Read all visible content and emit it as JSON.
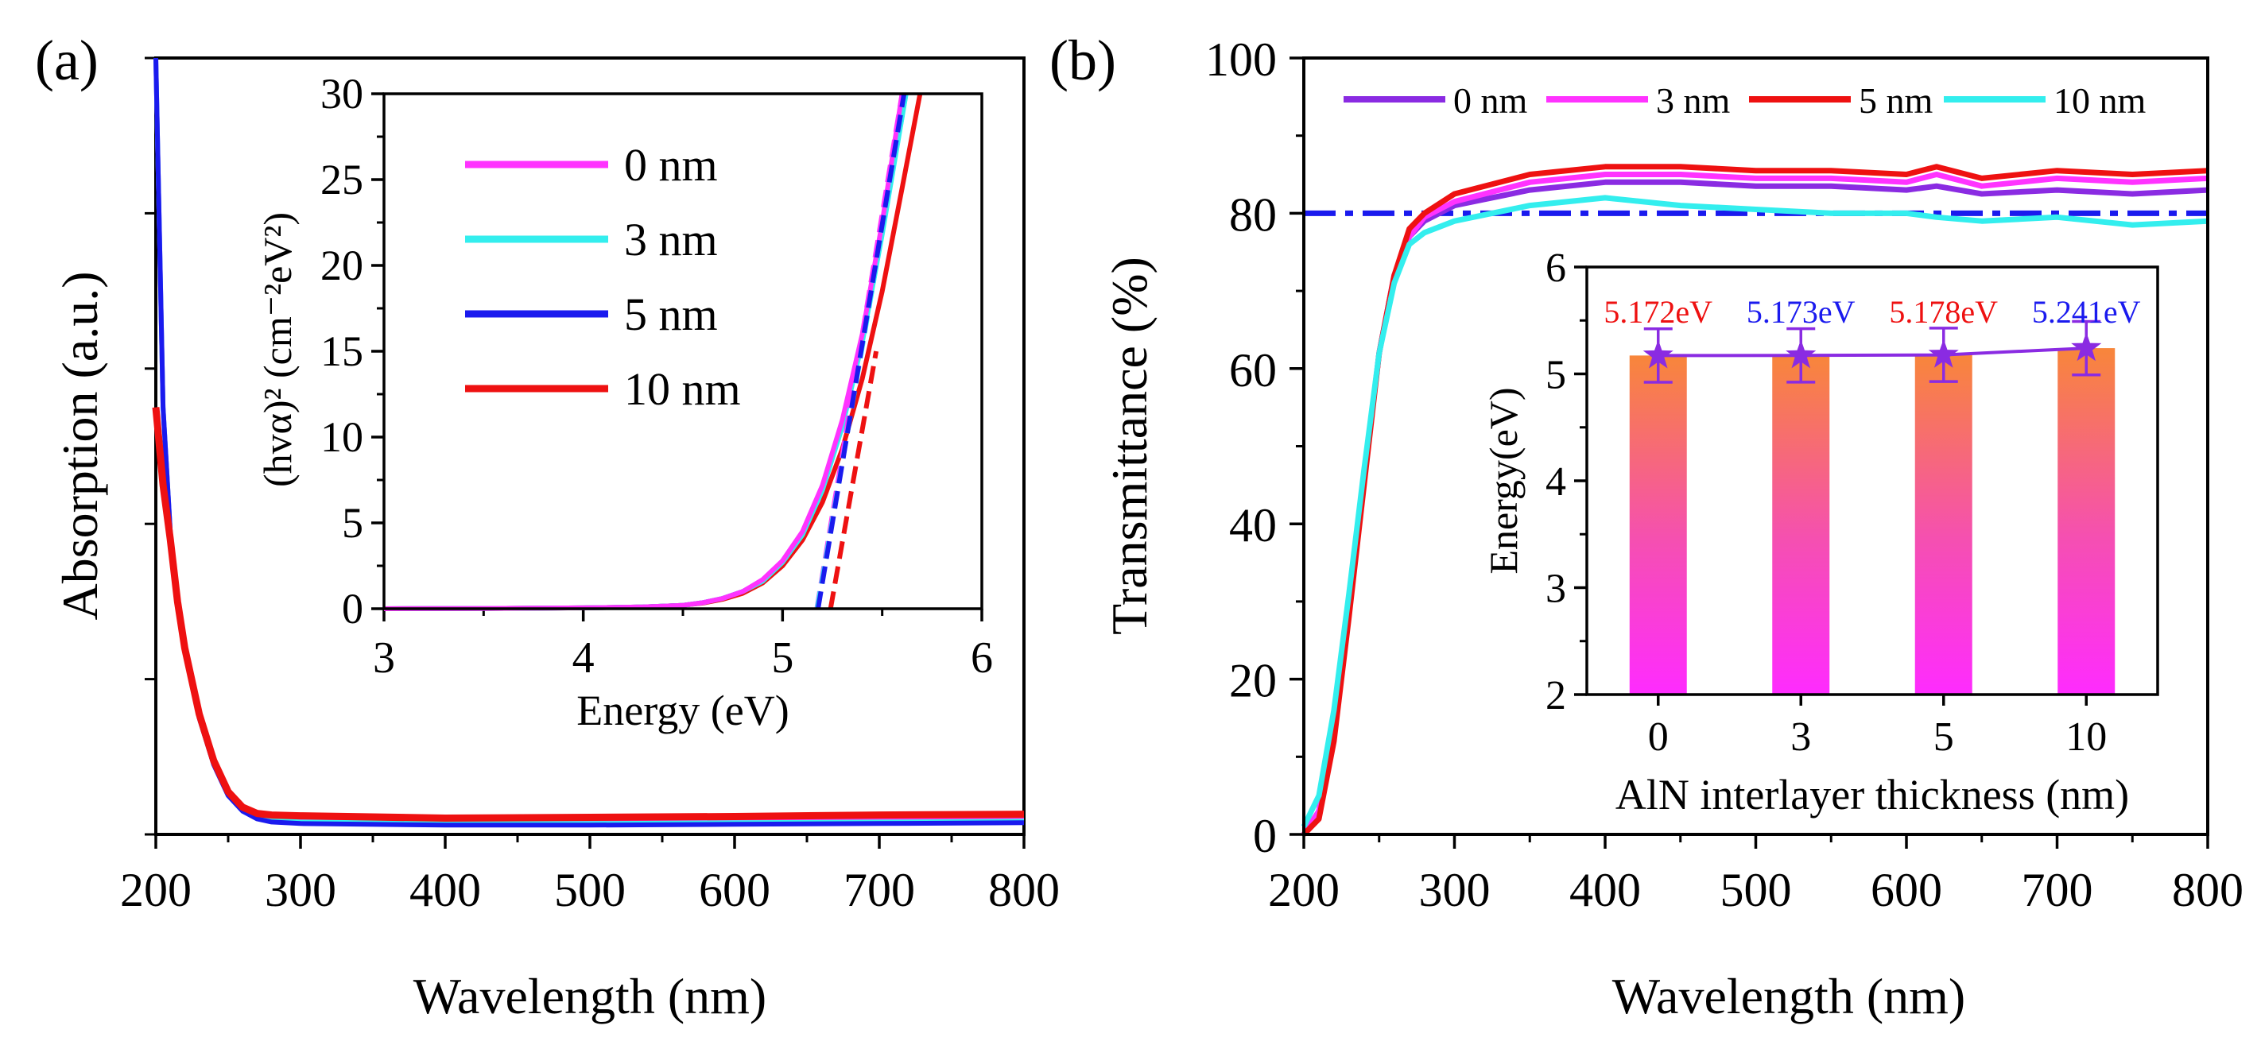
{
  "chart_data": [
    {
      "id": "a",
      "panel_label": "(a)",
      "type": "line",
      "xlabel": "Wavelength (nm)",
      "ylabel": "Absorption (a.u.)",
      "xlim": [
        200,
        800
      ],
      "ylim": [
        0,
        1
      ],
      "xticks": [
        "200",
        "300",
        "400",
        "500",
        "600",
        "700",
        "800"
      ],
      "series": [
        {
          "name": "0 nm",
          "color": "#ff33ff",
          "x": [
            200,
            205,
            210,
            215,
            220,
            230,
            240,
            250,
            260,
            270,
            280,
            300,
            400,
            500,
            600,
            700,
            800
          ],
          "y": [
            1.0,
            0.55,
            0.39,
            0.3,
            0.24,
            0.15,
            0.09,
            0.05,
            0.03,
            0.022,
            0.02,
            0.018,
            0.016,
            0.016,
            0.017,
            0.018,
            0.019
          ]
        },
        {
          "name": "3 nm",
          "color": "#33eeee",
          "x": [
            200,
            205,
            210,
            215,
            220,
            230,
            240,
            250,
            260,
            270,
            280,
            300,
            400,
            500,
            600,
            700,
            800
          ],
          "y": [
            1.0,
            0.55,
            0.39,
            0.3,
            0.24,
            0.15,
            0.09,
            0.05,
            0.03,
            0.021,
            0.018,
            0.016,
            0.014,
            0.014,
            0.015,
            0.016,
            0.017
          ]
        },
        {
          "name": "5 nm",
          "color": "#1a1aee",
          "x": [
            200,
            205,
            210,
            215,
            220,
            230,
            240,
            250,
            260,
            270,
            280,
            300,
            400,
            500,
            600,
            700,
            800
          ],
          "y": [
            1.0,
            0.55,
            0.39,
            0.3,
            0.24,
            0.15,
            0.09,
            0.05,
            0.03,
            0.02,
            0.016,
            0.014,
            0.012,
            0.012,
            0.013,
            0.014,
            0.015
          ]
        },
        {
          "name": "10 nm",
          "color": "#ee1111",
          "x": [
            200,
            205,
            210,
            215,
            220,
            230,
            240,
            250,
            260,
            270,
            280,
            300,
            400,
            500,
            600,
            700,
            800
          ],
          "y": [
            0.55,
            0.45,
            0.38,
            0.3,
            0.24,
            0.155,
            0.095,
            0.055,
            0.035,
            0.027,
            0.025,
            0.024,
            0.021,
            0.022,
            0.023,
            0.025,
            0.026
          ]
        }
      ],
      "inset": {
        "type": "line",
        "xlabel": "Energy (eV)",
        "ylabel": "(hvα)² (cm⁻²eV²)",
        "xlim": [
          3,
          6
        ],
        "ylim": [
          0,
          30
        ],
        "xticks": [
          "3",
          "4",
          "5",
          "6"
        ],
        "yticks": [
          "0",
          "5",
          "10",
          "15",
          "20",
          "25",
          "30"
        ],
        "legend": [
          "0 nm",
          "3 nm",
          "5 nm",
          "10 nm"
        ],
        "series": [
          {
            "name": "0 nm",
            "color": "#ff33ff",
            "x": [
              3,
              3.5,
              4,
              4.3,
              4.5,
              4.6,
              4.7,
              4.8,
              4.9,
              5.0,
              5.1,
              5.2,
              5.3,
              5.4,
              5.5,
              5.6
            ],
            "y": [
              0,
              0.02,
              0.05,
              0.1,
              0.2,
              0.35,
              0.6,
              1.0,
              1.7,
              2.8,
              4.5,
              7.2,
              11,
              16,
              22.5,
              30
            ]
          },
          {
            "name": "3 nm",
            "color": "#33eeee",
            "x": [
              3,
              3.5,
              4,
              4.3,
              4.5,
              4.6,
              4.7,
              4.8,
              4.9,
              5.0,
              5.1,
              5.2,
              5.3,
              5.4,
              5.5,
              5.62
            ],
            "y": [
              0,
              0.02,
              0.05,
              0.1,
              0.2,
              0.35,
              0.6,
              1.0,
              1.6,
              2.7,
              4.3,
              6.9,
              10.6,
              15.5,
              21.8,
              30
            ]
          },
          {
            "name": "5 nm",
            "color": "#1a1aee",
            "x": [
              3,
              3.5,
              4,
              4.3,
              4.5,
              4.6,
              4.7,
              4.8,
              4.9,
              5.0,
              5.1,
              5.2,
              5.3,
              5.4,
              5.5,
              5.61
            ],
            "y": [
              0,
              0.02,
              0.05,
              0.1,
              0.2,
              0.35,
              0.6,
              1.0,
              1.65,
              2.75,
              4.4,
              7.0,
              10.8,
              15.8,
              22.1,
              30
            ]
          },
          {
            "name": "10 nm",
            "color": "#ee1111",
            "x": [
              3,
              3.5,
              4,
              4.3,
              4.5,
              4.6,
              4.7,
              4.8,
              4.9,
              5.0,
              5.1,
              5.2,
              5.3,
              5.4,
              5.5,
              5.6,
              5.69
            ],
            "y": [
              0,
              0.02,
              0.05,
              0.1,
              0.2,
              0.33,
              0.55,
              0.9,
              1.5,
              2.5,
              4.0,
              6.2,
              9.3,
              13.4,
              18.5,
              24.5,
              30
            ]
          }
        ],
        "tangents": [
          {
            "color": "#ff33ff",
            "x": [
              5.172,
              5.6
            ],
            "y": [
              0,
              30
            ]
          },
          {
            "color": "#33eeee",
            "x": [
              5.173,
              5.62
            ],
            "y": [
              0,
              30
            ]
          },
          {
            "color": "#1a1aee",
            "x": [
              5.178,
              5.61
            ],
            "y": [
              0,
              30
            ]
          },
          {
            "color": "#ee1111",
            "x": [
              5.241,
              5.47
            ],
            "y": [
              0,
              15
            ]
          }
        ]
      }
    },
    {
      "id": "b",
      "panel_label": "(b)",
      "type": "line",
      "xlabel": "Wavelength (nm)",
      "ylabel": "Transmittance (%)",
      "xlim": [
        200,
        800
      ],
      "ylim": [
        0,
        100
      ],
      "xticks": [
        "200",
        "300",
        "400",
        "500",
        "600",
        "700",
        "800"
      ],
      "yticks": [
        "0",
        "20",
        "40",
        "60",
        "80",
        "100"
      ],
      "reference_line": {
        "y": 80,
        "color": "#1a1aee"
      },
      "legend": [
        "0 nm",
        "3 nm",
        "5 nm",
        "10 nm"
      ],
      "series": [
        {
          "name": "0 nm",
          "color": "#8a2be2",
          "x": [
            200,
            210,
            220,
            230,
            240,
            250,
            260,
            270,
            280,
            300,
            350,
            400,
            450,
            500,
            550,
            600,
            620,
            650,
            700,
            750,
            800
          ],
          "y": [
            0,
            3,
            14,
            30,
            46,
            62,
            72,
            77,
            79,
            81,
            83,
            84,
            84,
            83.5,
            83.5,
            83,
            83.5,
            82.5,
            83,
            82.5,
            83
          ]
        },
        {
          "name": "3 nm",
          "color": "#ff33ff",
          "x": [
            200,
            210,
            220,
            230,
            240,
            250,
            260,
            270,
            280,
            300,
            350,
            400,
            450,
            500,
            550,
            600,
            620,
            650,
            700,
            750,
            800
          ],
          "y": [
            0,
            3,
            14,
            30,
            46,
            62,
            72,
            77,
            79.5,
            81.5,
            84,
            85,
            85,
            84.5,
            84.5,
            84,
            85,
            83.5,
            84.5,
            84,
            84.5
          ]
        },
        {
          "name": "5 nm",
          "color": "#ee1111",
          "x": [
            200,
            210,
            220,
            230,
            240,
            250,
            260,
            270,
            280,
            300,
            350,
            400,
            450,
            500,
            550,
            600,
            620,
            650,
            700,
            750,
            800
          ],
          "y": [
            0,
            2,
            12,
            28,
            45,
            62,
            72,
            78,
            80,
            82.5,
            85,
            86,
            86,
            85.5,
            85.5,
            85,
            86,
            84.5,
            85.5,
            85,
            85.5
          ]
        },
        {
          "name": "10 nm",
          "color": "#33eeee",
          "x": [
            200,
            210,
            220,
            230,
            240,
            250,
            260,
            270,
            280,
            300,
            350,
            400,
            450,
            500,
            550,
            600,
            620,
            650,
            700,
            750,
            800
          ],
          "y": [
            1,
            5,
            16,
            31,
            47,
            62,
            71,
            76,
            77.5,
            79,
            81,
            82,
            81,
            80.5,
            80,
            80,
            79.5,
            79,
            79.5,
            78.5,
            79
          ]
        }
      ],
      "inset": {
        "type": "bar",
        "xlabel": "AlN interlayer thickness (nm)",
        "ylabel": "Energy(eV)",
        "categories": [
          "0",
          "3",
          "5",
          "10"
        ],
        "values": [
          5.172,
          5.173,
          5.178,
          5.241
        ],
        "errors": [
          0.25,
          0.25,
          0.25,
          0.25
        ],
        "value_labels": [
          "5.172eV",
          "5.173eV",
          "5.178eV",
          "5.241eV"
        ],
        "label_colors": [
          "#ee1111",
          "#1a1aee",
          "#ee1111",
          "#1a1aee"
        ],
        "ylim": [
          2,
          6
        ],
        "yticks": [
          "2",
          "3",
          "4",
          "5",
          "6"
        ]
      }
    }
  ]
}
